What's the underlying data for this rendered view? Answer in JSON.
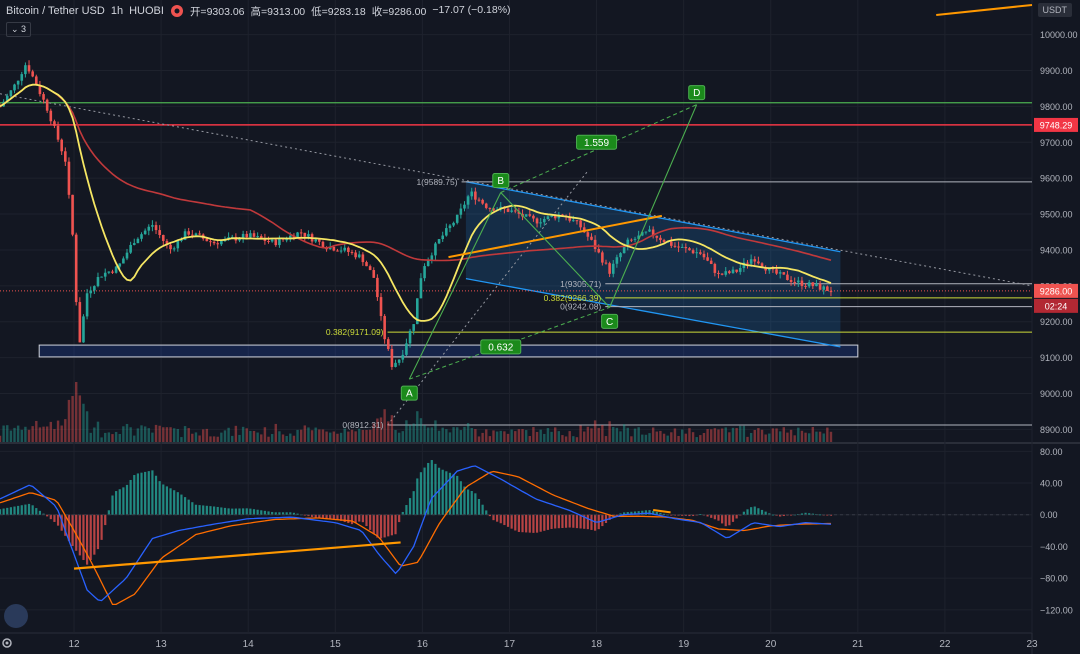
{
  "header": {
    "symbol": "Bitcoin / Tether USD",
    "interval": "1h",
    "exchange": "HUOBI",
    "open": "开=9303.06",
    "high": "高=9313.00",
    "low": "低=9283.18",
    "close": "收=9286.00",
    "change": "−17.07 (−0.18%)",
    "indicator_badge": "3",
    "currency": "USDT"
  },
  "colors": {
    "up": "#26a69a",
    "down": "#ef5350",
    "ma_fast": "#f5e663",
    "ma_slow": "#c0393b",
    "red_line": "#f23645",
    "green_line": "#4caf50",
    "channel": "#2196f3",
    "orange": "#ff9800",
    "macd": "#2962ff",
    "signal": "#ff6d00"
  },
  "chart_data": [
    {
      "type": "candlestick",
      "y_ticks": [
        8900,
        9000,
        9100,
        9200,
        9300,
        9400,
        9500,
        9600,
        9700,
        9800,
        9900,
        10000
      ],
      "y_tick_labels": [
        "8900.00",
        "9000.00",
        "9100.00",
        "9200.00",
        "9300.00",
        "9400.00",
        "9500.00",
        "9600.00",
        "9700.00",
        "9800.00",
        "9900.00",
        "10000.00"
      ],
      "x_ticks": [
        12,
        13,
        14,
        15,
        16,
        17,
        18,
        19,
        20,
        21,
        22,
        23
      ],
      "x_tick_labels": [
        "12",
        "13",
        "14",
        "15",
        "16",
        "17",
        "18",
        "19",
        "20",
        "21",
        "22",
        "23"
      ],
      "x_range": [
        11.15,
        23.0
      ],
      "y_range": [
        8865,
        10035
      ],
      "current_price": 9286.0,
      "current_price_label": "9286.00",
      "countdown_label": "02:24",
      "red_level": 9748.29,
      "red_level_label": "9748.29",
      "green_level": 9810,
      "resistance_channel": {
        "top": [
          [
            16.5,
            9590
          ],
          [
            20.8,
            9395
          ]
        ],
        "bottom": [
          [
            16.5,
            9320
          ],
          [
            20.8,
            9130
          ]
        ]
      },
      "support_zone": {
        "x": [
          11.6,
          21.0
        ],
        "y": [
          9102,
          9135
        ]
      },
      "fib_labels": [
        {
          "text": "1(9589.75)",
          "x": 16.45,
          "y": 9589.75
        },
        {
          "text": "0.382(9171.09)",
          "x": 15.6,
          "y": 9171.09
        },
        {
          "text": "0(8912.31)",
          "x": 15.6,
          "y": 8912.31
        },
        {
          "text": "1(9305.71)",
          "x": 18.1,
          "y": 9305.71
        },
        {
          "text": "0.382(9266.39)",
          "x": 18.1,
          "y": 9266.39
        },
        {
          "text": "0(9242.08)",
          "x": 18.1,
          "y": 9242.08
        }
      ],
      "abcd_points": [
        {
          "label": "A",
          "x": 15.85,
          "y": 9040
        },
        {
          "label": "B",
          "x": 16.9,
          "y": 9560
        },
        {
          "label": "C",
          "x": 18.15,
          "y": 9240
        },
        {
          "label": "D",
          "x": 19.15,
          "y": 9805
        }
      ],
      "ratio_labels": [
        {
          "text": "1.559",
          "x": 18.0,
          "y": 9700
        },
        {
          "text": "0.632",
          "x": 16.9,
          "y": 9130
        }
      ],
      "close_anchors": [
        [
          11.15,
          9800
        ],
        [
          11.3,
          9850
        ],
        [
          11.45,
          9920
        ],
        [
          11.55,
          9870
        ],
        [
          11.7,
          9790
        ],
        [
          11.8,
          9720
        ],
        [
          11.9,
          9650
        ],
        [
          12.0,
          9400
        ],
        [
          12.05,
          9120
        ],
        [
          12.15,
          9280
        ],
        [
          12.3,
          9330
        ],
        [
          12.5,
          9350
        ],
        [
          12.7,
          9430
        ],
        [
          12.9,
          9470
        ],
        [
          13.1,
          9400
        ],
        [
          13.3,
          9450
        ],
        [
          13.6,
          9420
        ],
        [
          14.0,
          9440
        ],
        [
          14.3,
          9420
        ],
        [
          14.6,
          9450
        ],
        [
          14.9,
          9410
        ],
        [
          15.1,
          9400
        ],
        [
          15.3,
          9380
        ],
        [
          15.45,
          9320
        ],
        [
          15.55,
          9170
        ],
        [
          15.65,
          9080
        ],
        [
          15.75,
          9100
        ],
        [
          15.9,
          9200
        ],
        [
          16.0,
          9350
        ],
        [
          16.2,
          9430
        ],
        [
          16.4,
          9490
        ],
        [
          16.55,
          9560
        ],
        [
          16.75,
          9520
        ],
        [
          17.0,
          9510
        ],
        [
          17.3,
          9480
        ],
        [
          17.6,
          9500
        ],
        [
          17.8,
          9470
        ],
        [
          17.95,
          9420
        ],
        [
          18.15,
          9340
        ],
        [
          18.35,
          9420
        ],
        [
          18.6,
          9450
        ],
        [
          18.9,
          9410
        ],
        [
          19.2,
          9390
        ],
        [
          19.4,
          9330
        ],
        [
          19.6,
          9340
        ],
        [
          19.8,
          9380
        ],
        [
          20.0,
          9340
        ],
        [
          20.3,
          9310
        ],
        [
          20.5,
          9300
        ],
        [
          20.7,
          9286
        ]
      ]
    },
    {
      "type": "macd",
      "y_ticks": [
        80,
        40,
        0,
        -40,
        -80,
        -120
      ],
      "y_tick_labels": [
        "80.00",
        "40.00",
        "0.00",
        "−40.00",
        "−80.00",
        "−120.00"
      ],
      "y_range": [
        -148,
        88
      ],
      "macd_anchors": [
        [
          11.15,
          20
        ],
        [
          11.5,
          38
        ],
        [
          11.8,
          10
        ],
        [
          12.0,
          -50
        ],
        [
          12.15,
          -95
        ],
        [
          12.3,
          -110
        ],
        [
          12.6,
          -80
        ],
        [
          12.9,
          -30
        ],
        [
          13.2,
          -20
        ],
        [
          13.6,
          -12
        ],
        [
          14.0,
          -5
        ],
        [
          14.5,
          -3
        ],
        [
          15.0,
          -10
        ],
        [
          15.3,
          -20
        ],
        [
          15.5,
          -50
        ],
        [
          15.7,
          -75
        ],
        [
          15.9,
          -40
        ],
        [
          16.1,
          20
        ],
        [
          16.4,
          55
        ],
        [
          16.6,
          62
        ],
        [
          16.9,
          45
        ],
        [
          17.3,
          20
        ],
        [
          17.7,
          5
        ],
        [
          18.0,
          -10
        ],
        [
          18.3,
          0
        ],
        [
          18.6,
          2
        ],
        [
          18.9,
          -5
        ],
        [
          19.2,
          -10
        ],
        [
          19.5,
          -30
        ],
        [
          19.8,
          -10
        ],
        [
          20.1,
          -15
        ],
        [
          20.4,
          -10
        ],
        [
          20.7,
          -12
        ]
      ],
      "signal_anchors": [
        [
          11.15,
          15
        ],
        [
          11.5,
          28
        ],
        [
          11.8,
          18
        ],
        [
          12.0,
          -20
        ],
        [
          12.2,
          -60
        ],
        [
          12.45,
          -115
        ],
        [
          12.7,
          -100
        ],
        [
          13.0,
          -55
        ],
        [
          13.4,
          -25
        ],
        [
          13.8,
          -14
        ],
        [
          14.3,
          -6
        ],
        [
          14.8,
          -4
        ],
        [
          15.2,
          -8
        ],
        [
          15.5,
          -28
        ],
        [
          15.75,
          -65
        ],
        [
          15.95,
          -60
        ],
        [
          16.2,
          -10
        ],
        [
          16.5,
          35
        ],
        [
          16.8,
          55
        ],
        [
          17.1,
          48
        ],
        [
          17.5,
          25
        ],
        [
          17.9,
          8
        ],
        [
          18.2,
          -2
        ],
        [
          18.5,
          -2
        ],
        [
          18.8,
          -3
        ],
        [
          19.1,
          -7
        ],
        [
          19.4,
          -18
        ],
        [
          19.7,
          -20
        ],
        [
          20.0,
          -14
        ],
        [
          20.3,
          -12
        ],
        [
          20.7,
          -11
        ]
      ],
      "divergence_line": [
        [
          12.0,
          -68
        ],
        [
          15.75,
          -35
        ]
      ]
    }
  ]
}
